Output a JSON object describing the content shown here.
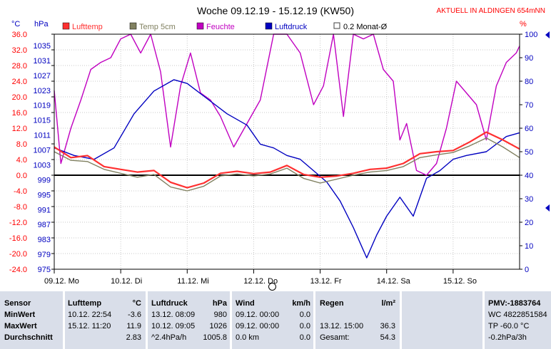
{
  "chart_data": {
    "type": "line",
    "title": "Woche 09.12.19 - 15.12.19 (KW50)",
    "header_right": "AKTUELL IN ALDINGEN 654mNN",
    "unit_left_temp": "°C",
    "unit_left_pressure": "hPa",
    "unit_right": "%",
    "x_days": [
      "09.12.  Mo",
      "10.12.  Di",
      "11.12.  Mi",
      "12.12.  Do",
      "13.12.  Fr",
      "14.12.  Sa",
      "15.12.  So"
    ],
    "y_temp_ticks": [
      "36.0",
      "32.0",
      "28.0",
      "24.0",
      "20.0",
      "16.0",
      "12.0",
      "8.0",
      "4.0",
      "0.0",
      "-4.0",
      "-8.0",
      "-12.0",
      "-16.0",
      "-20.0",
      "-24.0"
    ],
    "y_pressure_ticks": [
      "1035",
      "1031",
      "1027",
      "1023",
      "1019",
      "1015",
      "1011",
      "1007",
      "1003",
      "999",
      "995",
      "991",
      "987",
      "983",
      "979",
      "975"
    ],
    "y_humidity_ticks": [
      "100",
      "90",
      "80",
      "70",
      "60",
      "50",
      "40",
      "30",
      "20",
      "10",
      "0"
    ],
    "temp_range": [
      -24,
      36
    ],
    "pressure_range": [
      975,
      1037
    ],
    "humidity_range": [
      0,
      100
    ],
    "x_range_days": [
      0,
      7
    ],
    "legend": [
      {
        "label": "Lufttemp",
        "color": "#ff3030"
      },
      {
        "label": "Temp 5cm",
        "color": "#808060"
      },
      {
        "label": "Feuchte",
        "color": "#c000c0"
      },
      {
        "label": "Luftdruck",
        "color": "#0000c0"
      },
      {
        "label": "0.2 Monat-Ø",
        "color": "#404040"
      }
    ],
    "series": [
      {
        "name": "Lufttemp",
        "axis": "temp",
        "color": "#ff3030",
        "x": [
          0,
          0.25,
          0.5,
          0.75,
          1.0,
          1.25,
          1.5,
          1.75,
          2.0,
          2.25,
          2.5,
          2.75,
          3.0,
          3.25,
          3.5,
          3.75,
          4.0,
          4.25,
          4.5,
          4.75,
          5.0,
          5.25,
          5.5,
          5.75,
          6.0,
          6.25,
          6.5,
          6.75,
          7.0
        ],
        "y": [
          7.2,
          4.5,
          5.0,
          2.2,
          1.5,
          0.8,
          1.2,
          -1.8,
          -3.2,
          -2.0,
          0.5,
          1.0,
          0.4,
          0.8,
          2.5,
          0.2,
          -0.5,
          -0.2,
          0.5,
          1.5,
          1.8,
          3.0,
          5.5,
          6.0,
          6.3,
          8.5,
          11.0,
          9.0,
          6.7
        ]
      },
      {
        "name": "Temp 5cm",
        "axis": "temp",
        "color": "#808060",
        "x": [
          0,
          0.25,
          0.5,
          0.75,
          1.0,
          1.25,
          1.5,
          1.75,
          2.0,
          2.25,
          2.5,
          2.75,
          3.0,
          3.25,
          3.5,
          3.75,
          4.0,
          4.25,
          4.5,
          4.75,
          5.0,
          5.25,
          5.5,
          5.75,
          6.0,
          6.25,
          6.5,
          6.75,
          7.0
        ],
        "y": [
          6.0,
          3.8,
          3.5,
          1.5,
          0.5,
          -0.5,
          0.2,
          -3.0,
          -4.0,
          -2.8,
          -0.2,
          0.3,
          -0.2,
          0.3,
          1.8,
          -0.8,
          -2.0,
          -1.0,
          0.0,
          0.8,
          1.2,
          2.2,
          4.5,
          5.2,
          5.8,
          7.5,
          9.5,
          7.2,
          4.5
        ]
      },
      {
        "name": "Feuchte",
        "axis": "humidity",
        "color": "#c000c0",
        "x": [
          0,
          0.1,
          0.25,
          0.4,
          0.55,
          0.7,
          0.85,
          1.0,
          1.15,
          1.3,
          1.45,
          1.6,
          1.75,
          1.9,
          2.05,
          2.2,
          2.35,
          2.5,
          2.7,
          2.9,
          3.1,
          3.3,
          3.5,
          3.7,
          3.9,
          4.05,
          4.2,
          4.35,
          4.5,
          4.65,
          4.8,
          4.95,
          5.1,
          5.2,
          5.3,
          5.45,
          5.6,
          5.75,
          5.9,
          6.05,
          6.2,
          6.35,
          6.5,
          6.65,
          6.8,
          6.95,
          7.0
        ],
        "y": [
          76,
          45,
          60,
          72,
          85,
          88,
          90,
          98,
          100,
          92,
          100,
          84,
          52,
          78,
          92,
          75,
          72,
          65,
          52,
          62,
          72,
          100,
          100,
          92,
          70,
          78,
          100,
          65,
          100,
          98,
          100,
          85,
          80,
          55,
          62,
          42,
          40,
          45,
          60,
          80,
          75,
          70,
          55,
          78,
          88,
          92,
          95
        ]
      },
      {
        "name": "Luftdruck",
        "axis": "pressure",
        "color": "#0000c0",
        "x": [
          0,
          0.3,
          0.6,
          0.9,
          1.2,
          1.5,
          1.8,
          2.0,
          2.3,
          2.6,
          2.9,
          3.1,
          3.3,
          3.5,
          3.7,
          3.9,
          4.1,
          4.3,
          4.5,
          4.7,
          4.85,
          5.0,
          5.2,
          5.4,
          5.6,
          5.8,
          6.0,
          6.2,
          6.5,
          6.8,
          7.0
        ],
        "y": [
          1007,
          1005,
          1004,
          1007,
          1016,
          1022,
          1025,
          1024,
          1020,
          1016,
          1013,
          1008,
          1007,
          1005,
          1004,
          1001,
          998,
          993,
          986,
          978,
          984,
          989,
          994,
          989,
          999,
          1001,
          1004,
          1005,
          1006,
          1010,
          1011
        ]
      }
    ]
  },
  "table": {
    "headers": {
      "sensor": "Sensor",
      "lufttemp": "Lufttemp",
      "lufttemp_unit": "°C",
      "luftdruck": "Luftdruck",
      "luftdruck_unit": "hPa",
      "wind": "Wind",
      "wind_unit": "km/h",
      "regen": "Regen",
      "regen_unit": "l/m²",
      "pmv": "PMV:-1883764"
    },
    "rows": [
      {
        "label": "MinWert",
        "temp_time": "10.12.  22:54",
        "temp_val": "-3.6",
        "press_time": "13.12.  08:09",
        "press_val": "980",
        "wind_time": "09.12.  00:00",
        "wind_val": "0.0",
        "rain_time": "",
        "rain_val": "",
        "pmv": "WC 4822851584"
      },
      {
        "label": "MaxWert",
        "temp_time": "15.12.  11:20",
        "temp_val": "11.9",
        "press_time": "10.12.  09:05",
        "press_val": "1026",
        "wind_time": "09.12.  00:00",
        "wind_val": "0.0",
        "rain_time": "13.12.  15:00",
        "rain_val": "36.3",
        "pmv": "TP -60.0 °C"
      },
      {
        "label": "Durchschnitt",
        "temp_time": "",
        "temp_val": "2.83",
        "press_time": "^2.4hPa/h",
        "press_val": "1005.8",
        "wind_time": "0.0 km",
        "wind_val": "0.0",
        "rain_time": "Gesamt:",
        "rain_val": "54.3",
        "pmv": "-0.2hPa/3h"
      }
    ]
  }
}
